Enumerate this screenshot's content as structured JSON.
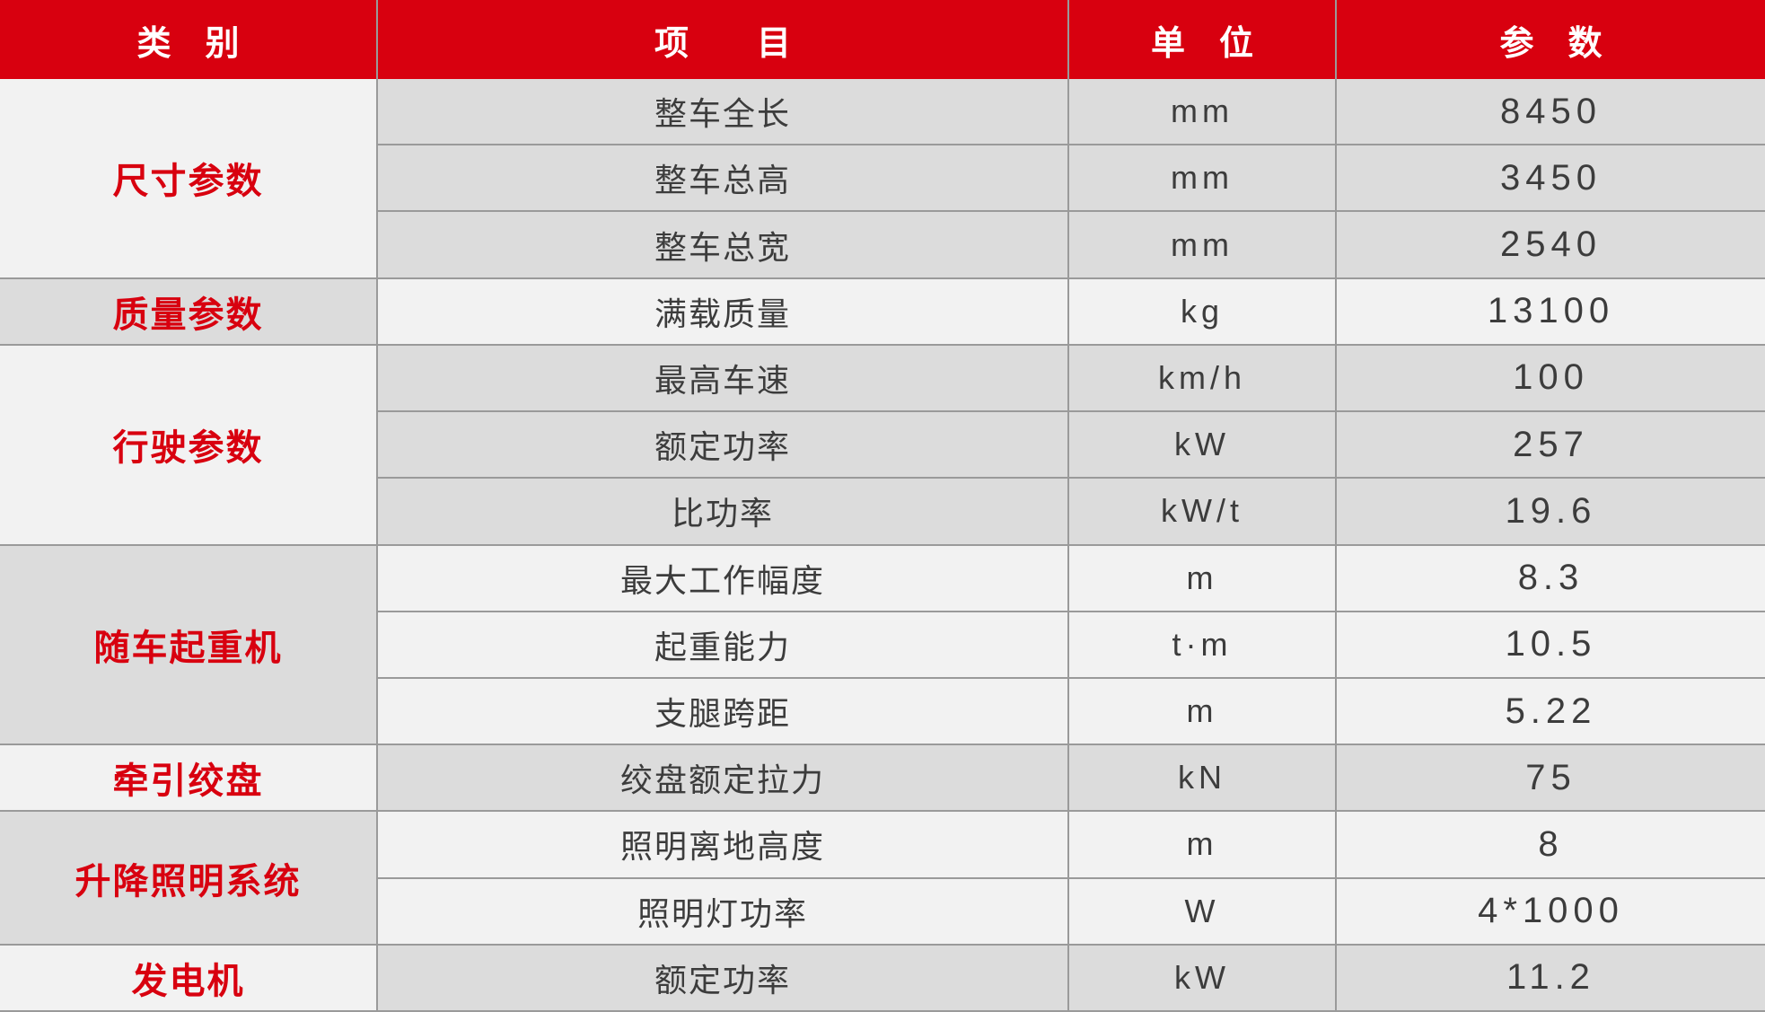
{
  "table": {
    "colors": {
      "red": "#d8000f",
      "row_dark": "#dcdcdc",
      "row_light": "#f2f2f2",
      "border": "#9a9a9a",
      "text": "#3c3c3c",
      "header_text": "#ffffff"
    },
    "header": {
      "category": "类　别",
      "item": "项　　目",
      "unit": "单　位",
      "parameter": "参　数"
    },
    "groups": [
      {
        "category": "尺寸参数",
        "shade": "light",
        "rows": [
          {
            "item": "整车全长",
            "unit": "mm",
            "value": "8450"
          },
          {
            "item": "整车总高",
            "unit": "mm",
            "value": "3450"
          },
          {
            "item": "整车总宽",
            "unit": "mm",
            "value": "2540"
          }
        ]
      },
      {
        "category": "质量参数",
        "shade": "dark",
        "rows": [
          {
            "item": "满载质量",
            "unit": "kg",
            "value": "13100"
          }
        ]
      },
      {
        "category": "行驶参数",
        "shade": "light",
        "rows": [
          {
            "item": "最高车速",
            "unit": "km/h",
            "value": "100"
          },
          {
            "item": "额定功率",
            "unit": "kW",
            "value": "257"
          },
          {
            "item": "比功率",
            "unit": "kW/t",
            "value": "19.6"
          }
        ]
      },
      {
        "category": "随车起重机",
        "shade": "dark",
        "rows": [
          {
            "item": "最大工作幅度",
            "unit": "m",
            "value": "8.3"
          },
          {
            "item": "起重能力",
            "unit": "t·m",
            "value": "10.5"
          },
          {
            "item": "支腿跨距",
            "unit": "m",
            "value": "5.22"
          }
        ]
      },
      {
        "category": "牵引绞盘",
        "shade": "light",
        "rows": [
          {
            "item": "绞盘额定拉力",
            "unit": "kN",
            "value": "75"
          }
        ]
      },
      {
        "category": "升降照明系统",
        "shade": "dark",
        "rows": [
          {
            "item": "照明离地高度",
            "unit": "m",
            "value": "8"
          },
          {
            "item": "照明灯功率",
            "unit": "W",
            "value": "4*1000"
          }
        ]
      },
      {
        "category": "发电机",
        "shade": "light",
        "rows": [
          {
            "item": "额定功率",
            "unit": "kW",
            "value": "11.2"
          }
        ]
      }
    ]
  }
}
